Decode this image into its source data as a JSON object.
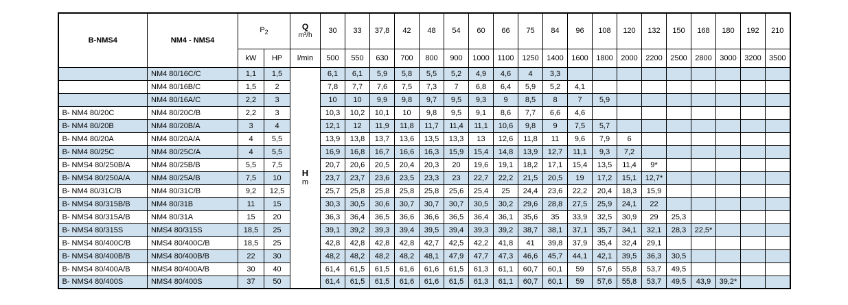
{
  "chart_data": {
    "type": "table",
    "header": {
      "bnms4_label": "B-NMS4",
      "model_label": "NM4 - NMS4",
      "p2_label": "P",
      "p2_subscript": "2",
      "kw_label": "kW",
      "hp_label": "HP",
      "q_label": "Q",
      "q_unit": "m³/h",
      "lmin_label": "l/min",
      "flow_m3h": [
        "30",
        "33",
        "37,8",
        "42",
        "48",
        "54",
        "60",
        "66",
        "75",
        "84",
        "96",
        "108",
        "120",
        "132",
        "150",
        "168",
        "180",
        "192",
        "210"
      ],
      "flow_lmin": [
        "500",
        "550",
        "630",
        "700",
        "800",
        "900",
        "1000",
        "1100",
        "1250",
        "1400",
        "1600",
        "1800",
        "2000",
        "2200",
        "2500",
        "2800",
        "3000",
        "3200",
        "3500"
      ]
    },
    "head_label": "H",
    "head_unit": "m",
    "rows": [
      {
        "bnms4": "",
        "model": "NM4 80/16C/C",
        "kw": "1,1",
        "hp": "1,5",
        "head_m": [
          "6,1",
          "6,1",
          "5,9",
          "5,8",
          "5,5",
          "5,2",
          "4,9",
          "4,6",
          "4",
          "3,3"
        ]
      },
      {
        "bnms4": "",
        "model": "NM4 80/16B/C",
        "kw": "1,5",
        "hp": "2",
        "head_m": [
          "7,8",
          "7,7",
          "7,6",
          "7,5",
          "7,3",
          "7",
          "6,8",
          "6,4",
          "5,9",
          "5,2",
          "4,1"
        ]
      },
      {
        "bnms4": "",
        "model": "NM4 80/16A/C",
        "kw": "2,2",
        "hp": "3",
        "head_m": [
          "10",
          "10",
          "9,9",
          "9,8",
          "9,7",
          "9,5",
          "9,3",
          "9",
          "8,5",
          "8",
          "7",
          "5,9"
        ]
      },
      {
        "bnms4": "B- NM4 80/20C",
        "model": "NM4 80/20C/B",
        "kw": "2,2",
        "hp": "3",
        "head_m": [
          "10,3",
          "10,2",
          "10,1",
          "10",
          "9,8",
          "9,5",
          "9,1",
          "8,6",
          "7,7",
          "6,6",
          "4,6"
        ]
      },
      {
        "bnms4": "B- NM4 80/20B",
        "model": "NM4 80/20B/A",
        "kw": "3",
        "hp": "4",
        "head_m": [
          "12,1",
          "12",
          "11,9",
          "11,8",
          "11,7",
          "11,4",
          "11,1",
          "10,6",
          "9,8",
          "9",
          "7,5",
          "5,7"
        ]
      },
      {
        "bnms4": "B- NM4 80/20A",
        "model": "NM4 80/20A/A",
        "kw": "4",
        "hp": "5,5",
        "head_m": [
          "13,9",
          "13,8",
          "13,7",
          "13,6",
          "13,5",
          "13,3",
          "13",
          "12,6",
          "11,8",
          "11",
          "9,6",
          "7,9",
          "6"
        ]
      },
      {
        "bnms4": "B- NM4 80/25C",
        "model": "NM4 80/25C/A",
        "kw": "4",
        "hp": "5,5",
        "head_m": [
          "16,9",
          "16,8",
          "16,7",
          "16,6",
          "16,3",
          "15,9",
          "15,4",
          "14,8",
          "13,9",
          "12,7",
          "11,1",
          "9,3",
          "7,2"
        ]
      },
      {
        "bnms4": "B- NMS4 80/250B/A",
        "model": "NM4 80/25B/B",
        "kw": "5,5",
        "hp": "7,5",
        "head_m": [
          "20,7",
          "20,6",
          "20,5",
          "20,4",
          "20,3",
          "20",
          "19,6",
          "19,1",
          "18,2",
          "17,1",
          "15,4",
          "13,5",
          "11,4",
          "9*"
        ]
      },
      {
        "bnms4": "B- NMS4 80/250A/A",
        "model": "NM4 80/25A/B",
        "kw": "7,5",
        "hp": "10",
        "head_m": [
          "23,7",
          "23,7",
          "23,6",
          "23,5",
          "23,3",
          "23",
          "22,7",
          "22,2",
          "21,5",
          "20,5",
          "19",
          "17,2",
          "15,1",
          "12,7*"
        ]
      },
      {
        "bnms4": "B- NM4 80/31C/B",
        "model": "NM4 80/31C/B",
        "kw": "9,2",
        "hp": "12,5",
        "head_m": [
          "25,7",
          "25,8",
          "25,8",
          "25,8",
          "25,8",
          "25,6",
          "25,4",
          "25",
          "24,4",
          "23,6",
          "22,2",
          "20,4",
          "18,3",
          "15,9"
        ]
      },
      {
        "bnms4": "B- NMS4 80/315B/B",
        "model": "NM4 80/31B",
        "kw": "11",
        "hp": "15",
        "head_m": [
          "30,3",
          "30,5",
          "30,6",
          "30,7",
          "30,7",
          "30,7",
          "30,5",
          "30,2",
          "29,6",
          "28,8",
          "27,5",
          "25,9",
          "24,1",
          "22"
        ]
      },
      {
        "bnms4": "B- NMS4 80/315A/B",
        "model": "NM4 80/31A",
        "kw": "15",
        "hp": "20",
        "head_m": [
          "36,3",
          "36,4",
          "36,5",
          "36,6",
          "36,6",
          "36,5",
          "36,4",
          "36,1",
          "35,6",
          "35",
          "33,9",
          "32,5",
          "30,9",
          "29",
          "25,3"
        ]
      },
      {
        "bnms4": "B- NMS4 80/315S",
        "model": "NMS4 80/315S",
        "kw": "18,5",
        "hp": "25",
        "head_m": [
          "39,1",
          "39,2",
          "39,3",
          "39,4",
          "39,5",
          "39,4",
          "39,3",
          "39,2",
          "38,7",
          "38,1",
          "37,1",
          "35,7",
          "34,1",
          "32,1",
          "28,3",
          "22,5*"
        ]
      },
      {
        "bnms4": "B- NMS4 80/400C/B",
        "model": "NMS4 80/400C/B",
        "kw": "18,5",
        "hp": "25",
        "head_m": [
          "42,8",
          "42,8",
          "42,8",
          "42,8",
          "42,7",
          "42,5",
          "42,2",
          "41,8",
          "41",
          "39,8",
          "37,9",
          "35,4",
          "32,4",
          "29,1"
        ]
      },
      {
        "bnms4": "B- NMS4 80/400B/B",
        "model": "NMS4 80/400B/B",
        "kw": "22",
        "hp": "30",
        "head_m": [
          "48,2",
          "48,2",
          "48,2",
          "48,2",
          "48,1",
          "47,9",
          "47,7",
          "47,3",
          "46,6",
          "45,7",
          "44,1",
          "42,1",
          "39,5",
          "36,3",
          "30,5"
        ]
      },
      {
        "bnms4": "B- NMS4 80/400A/B",
        "model": "NMS4 80/400A/B",
        "kw": "30",
        "hp": "40",
        "head_m": [
          "61,4",
          "61,5",
          "61,5",
          "61,6",
          "61,6",
          "61,5",
          "61,3",
          "61,1",
          "60,7",
          "60,1",
          "59",
          "57,6",
          "55,8",
          "53,7",
          "49,5"
        ]
      },
      {
        "bnms4": "B- NMS4 80/400S",
        "model": "NMS4 80/400S",
        "kw": "37",
        "hp": "50",
        "head_m": [
          "61,4",
          "61,5",
          "61,5",
          "61,6",
          "61,6",
          "61,5",
          "61,3",
          "61,1",
          "60,7",
          "60,1",
          "59",
          "57,6",
          "55,8",
          "53,7",
          "49,5",
          "43,9",
          "39,2*"
        ]
      }
    ],
    "colors": {
      "row_alt_blue": "#cfe1ee",
      "row_white": "#ffffff",
      "border": "#000000"
    }
  }
}
